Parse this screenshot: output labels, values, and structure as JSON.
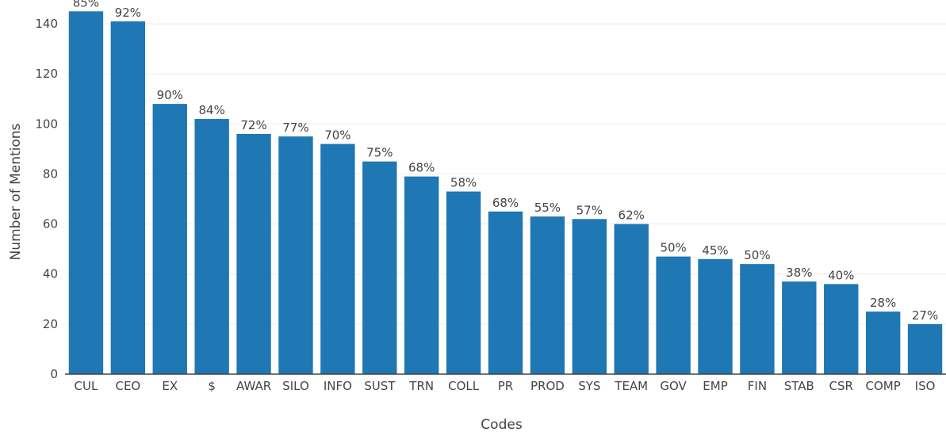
{
  "chart_data": {
    "type": "bar",
    "xlabel": "Codes",
    "ylabel": "Number of Mentions",
    "ylim": [
      0,
      147
    ],
    "yticks": [
      0,
      20,
      40,
      60,
      80,
      100,
      120,
      140
    ],
    "grid": true,
    "bar_color": "#1f77b4",
    "categories": [
      "CUL",
      "CEO",
      "EX",
      "$",
      "AWAR",
      "SILO",
      "INFO",
      "SUST",
      "TRN",
      "COLL",
      "PR",
      "PROD",
      "SYS",
      "TEAM",
      "GOV",
      "EMP",
      "FIN",
      "STAB",
      "CSR",
      "COMP",
      "ISO"
    ],
    "values": [
      145,
      141,
      108,
      102,
      96,
      95,
      92,
      85,
      79,
      73,
      65,
      63,
      62,
      60,
      47,
      46,
      44,
      37,
      36,
      25,
      20
    ],
    "data_labels": [
      "85%",
      "92%",
      "90%",
      "84%",
      "72%",
      "77%",
      "70%",
      "75%",
      "68%",
      "58%",
      "68%",
      "55%",
      "57%",
      "62%",
      "50%",
      "45%",
      "50%",
      "38%",
      "40%",
      "28%",
      "27%"
    ]
  }
}
